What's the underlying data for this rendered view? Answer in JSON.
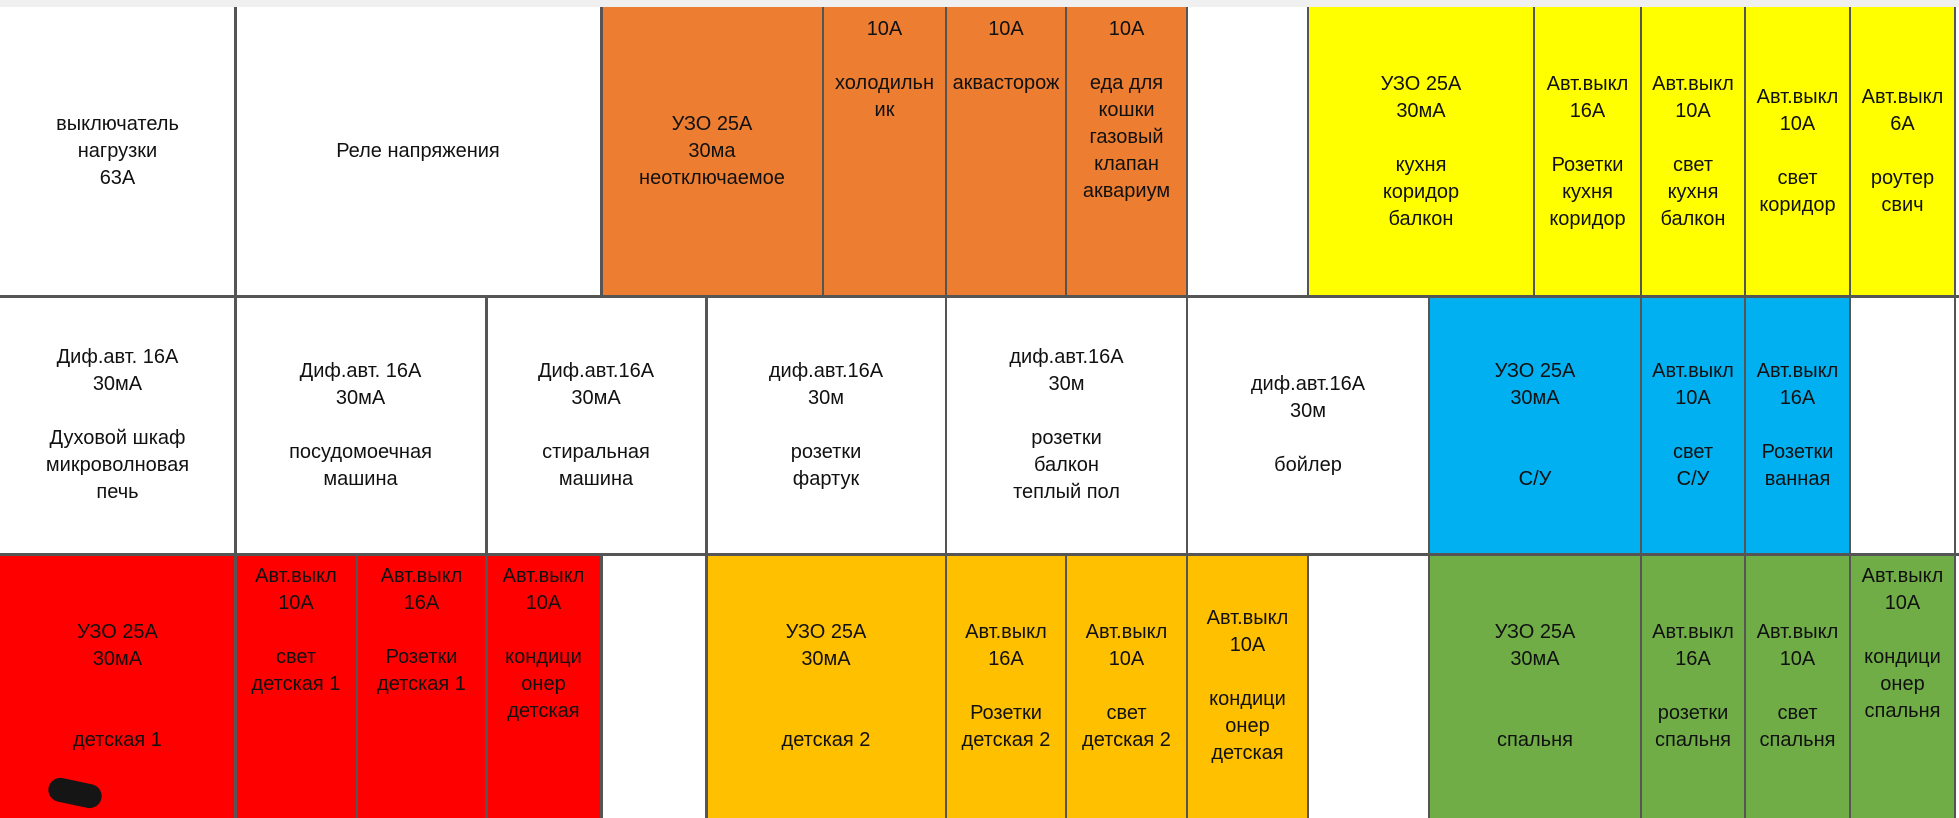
{
  "colors": {
    "white": "#ffffff",
    "orange": "#ed7d31",
    "yellow": "#ffff00",
    "blue": "#00b0f0",
    "red": "#ff0000",
    "amber": "#ffc000",
    "green": "#70ad47",
    "line": "#555555",
    "text": "#111111"
  },
  "rows": {
    "row1": {
      "load_switch": "выключатель\nнагрузки\n63А",
      "voltage_relay": "Реле напряжения",
      "rcd_unswitched": "УЗО 25А\n30ма\nнеотключаемое",
      "fridge": "10А\n\nхолодильн\nик",
      "water_guard": "10А\n\nаквасторож",
      "cat_food": "10А\n\nеда для\nкошки\nгазовый\nклапан\nаквариум",
      "empty_1": "",
      "rcd_kitchen": "УЗО 25А\n30мА\n\nкухня\nкоридор\nбалкон",
      "breaker_sockets_kitchen": "Авт.выкл\n16А\n\nРозетки\nкухня\nкоридор",
      "breaker_light_kitchen": "Авт.выкл\n10А\n\nсвет\nкухня\nбалкон",
      "breaker_light_corridor": "Авт.выкл\n10А\n\nсвет\nкоридор",
      "breaker_router": "Авт.выкл\n6А\n\nроутер\nсвич"
    },
    "row2": {
      "rcbo_oven": "Диф.авт. 16А\n30мА\n\nДуховой шкаф\nмикроволновая\nпечь",
      "rcbo_dishwasher": "Диф.авт. 16А\n30мА\n\nпосудомоечная\nмашина",
      "rcbo_washer": "Диф.авт.16А\n30мА\n\nстиральная\nмашина",
      "rcbo_apron": "диф.авт.16А\n30м\n\nрозетки\nфартук",
      "rcbo_balcony": "диф.авт.16А\n30м\n\nрозетки\nбалкон\nтеплый пол",
      "rcbo_boiler": "диф.авт.16А\n30м\n\nбойлер",
      "rcd_bathroom": "УЗО  25А\n30мА\n\n\nС/У",
      "breaker_light_bathroom": "Авт.выкл\n10А\n\nсвет\nС/У",
      "breaker_sockets_bathroom": "Авт.выкл\n16А\n\nРозетки\nванная",
      "empty_2": ""
    },
    "row3": {
      "rcd_kids1": "УЗО  25А\n30мА\n\n\nдетская 1",
      "breaker_light_kids1": "Авт.выкл\n10А\n\nсвет\nдетская 1",
      "breaker_sockets_kids1": "Авт.выкл\n16А\n\nРозетки\nдетская 1",
      "breaker_ac_kids1": "Авт.выкл\n10А\n\nкондици\nонер\nдетская",
      "empty_3": "",
      "rcd_kids2": "УЗО  25А\n30мА\n\n\nдетская 2",
      "breaker_sockets_kids2": "Авт.выкл\n16А\n\nРозетки\nдетская 2",
      "breaker_light_kids2": "Авт.выкл\n10А\n\nсвет\nдетская 2",
      "breaker_ac_kids2": "Авт.выкл\n10А\n\nкондици\nонер\nдетская",
      "empty_4": "",
      "rcd_bedroom": "УЗО 25А\n30мА\n\n\nспальня",
      "breaker_sockets_bedroom": "Авт.выкл\n16А\n\nрозетки\nспальня",
      "breaker_light_bedroom": "Авт.выкл\n10А\n\nсвет\nспальня",
      "breaker_ac_bedroom": "Авт.выкл\n10А\n\nкондици\nонер\nспальня"
    }
  }
}
